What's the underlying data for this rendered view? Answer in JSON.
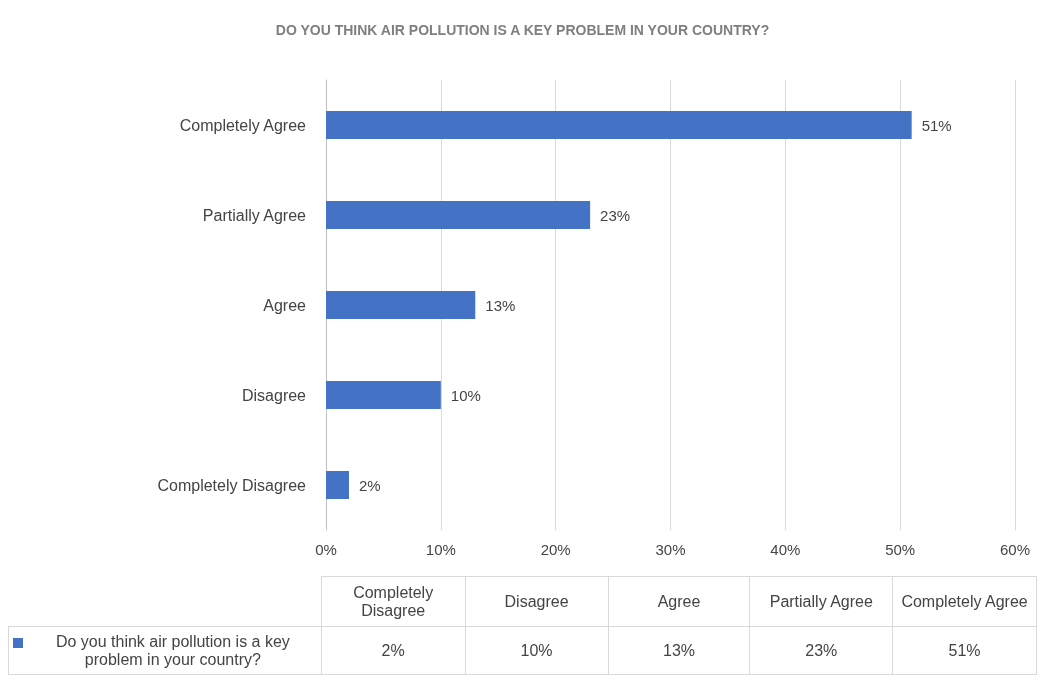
{
  "chart_data": {
    "type": "bar",
    "orientation": "horizontal",
    "title": "DO YOU THINK AIR POLLUTION IS A KEY PROBLEM IN YOUR COUNTRY?",
    "categories": [
      "Completely Agree",
      "Partially Agree",
      "Agree",
      "Disagree",
      "Completely Disagree"
    ],
    "series": [
      {
        "name": "Do you think air pollution is a key problem in your country?",
        "color": "#4472c4",
        "values": [
          51,
          23,
          13,
          10,
          2
        ],
        "value_labels": [
          "51%",
          "23%",
          "13%",
          "10%",
          "2%"
        ]
      }
    ],
    "xlim": [
      0,
      60
    ],
    "xticks": [
      {
        "value": 0,
        "label": "0%"
      },
      {
        "value": 10,
        "label": "10%"
      },
      {
        "value": 20,
        "label": "20%"
      },
      {
        "value": 30,
        "label": "30%"
      },
      {
        "value": 40,
        "label": "40%"
      },
      {
        "value": 50,
        "label": "50%"
      },
      {
        "value": 60,
        "label": "60%"
      }
    ],
    "grid": "x",
    "legend": "bottom"
  }
}
